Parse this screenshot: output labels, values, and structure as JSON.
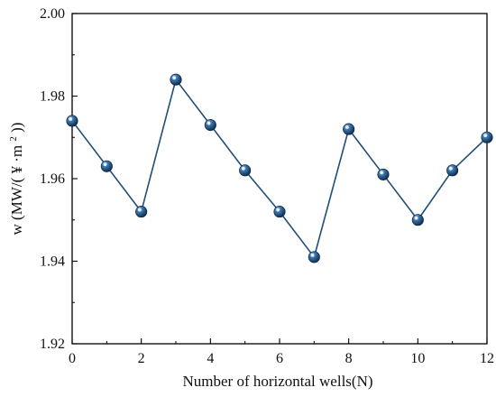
{
  "chart_data": {
    "type": "line",
    "title": "",
    "xlabel": "Number of horizontal wells(N)",
    "ylabel": {
      "prefix": "w (MW/(",
      "yen": "¥",
      "dot": "·m",
      "sup": "2",
      "suffix": "))"
    },
    "xlim": [
      0,
      12
    ],
    "ylim": [
      1.92,
      2.0
    ],
    "xticks": [
      0,
      2,
      4,
      6,
      8,
      10,
      12
    ],
    "xtick_labels": [
      "0",
      "2",
      "4",
      "6",
      "8",
      "10",
      "12"
    ],
    "yticks": [
      1.92,
      1.94,
      1.96,
      1.98,
      2.0
    ],
    "ytick_labels": [
      "1.92",
      "1.94",
      "1.96",
      "1.98",
      "2.00"
    ],
    "grid": false,
    "series": [
      {
        "color": "#1f4e79",
        "x": [
          0,
          1,
          2,
          3,
          4,
          5,
          6,
          7,
          8,
          9,
          10,
          11,
          12
        ],
        "y": [
          1.974,
          1.963,
          1.952,
          1.984,
          1.973,
          1.962,
          1.952,
          1.941,
          1.972,
          1.961,
          1.95,
          1.962,
          1.97
        ]
      }
    ]
  }
}
